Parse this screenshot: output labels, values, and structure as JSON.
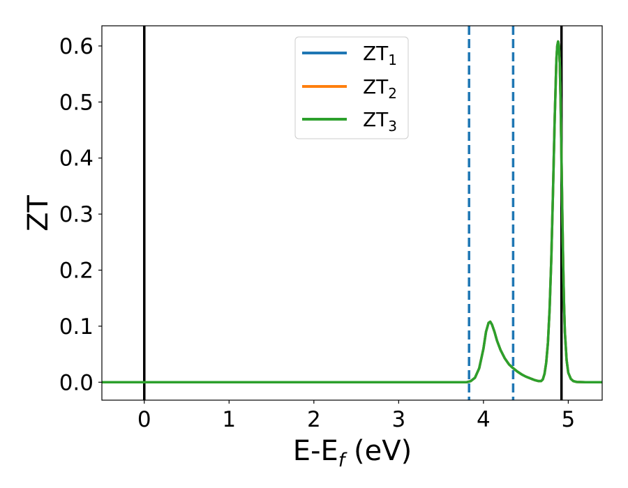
{
  "chart_data": {
    "type": "line",
    "xlabel_main": "E-E",
    "xlabel_sub": "f",
    "xlabel_unit": " (eV)",
    "ylabel": "ZT",
    "xlim": [
      -0.5,
      5.4
    ],
    "ylim": [
      -0.032,
      0.636
    ],
    "xticks": [
      0,
      1,
      2,
      3,
      4,
      5
    ],
    "xtick_labels": [
      "0",
      "1",
      "2",
      "3",
      "4",
      "5"
    ],
    "yticks": [
      0.0,
      0.1,
      0.2,
      0.3,
      0.4,
      0.5,
      0.6
    ],
    "ytick_labels": [
      "0.0",
      "0.1",
      "0.2",
      "0.3",
      "0.4",
      "0.5",
      "0.6"
    ],
    "grid": false,
    "legend_position": "top-center",
    "vlines": [
      {
        "x": 0.0,
        "style": "solid",
        "color": "#000000"
      },
      {
        "x": 4.92,
        "style": "solid",
        "color": "#000000"
      },
      {
        "x": 3.83,
        "style": "dashed",
        "color": "#1f77b4"
      },
      {
        "x": 4.35,
        "style": "dashed",
        "color": "#1f77b4"
      }
    ],
    "x": [
      -0.5,
      3.8,
      3.85,
      3.9,
      3.95,
      4.0,
      4.03,
      4.06,
      4.08,
      4.1,
      4.13,
      4.16,
      4.2,
      4.25,
      4.3,
      4.35,
      4.4,
      4.45,
      4.5,
      4.55,
      4.6,
      4.65,
      4.68,
      4.7,
      4.72,
      4.74,
      4.76,
      4.78,
      4.8,
      4.82,
      4.84,
      4.86,
      4.87,
      4.88,
      4.89,
      4.9,
      4.91,
      4.92,
      4.93,
      4.94,
      4.95,
      4.96,
      4.98,
      5.0,
      5.03,
      5.06,
      5.1,
      5.2,
      5.4
    ],
    "series": [
      {
        "name": "ZT",
        "sub": "1",
        "color": "#1f77b4",
        "values": [
          0,
          0,
          0.002,
          0.008,
          0.025,
          0.06,
          0.09,
          0.106,
          0.108,
          0.103,
          0.09,
          0.074,
          0.058,
          0.043,
          0.032,
          0.025,
          0.019,
          0.014,
          0.01,
          0.007,
          0.004,
          0.002,
          0.002,
          0.005,
          0.015,
          0.035,
          0.07,
          0.13,
          0.22,
          0.34,
          0.47,
          0.575,
          0.6,
          0.608,
          0.6,
          0.57,
          0.5,
          0.4,
          0.3,
          0.21,
          0.14,
          0.09,
          0.04,
          0.017,
          0.006,
          0.002,
          0.0005,
          0,
          0
        ]
      },
      {
        "name": "ZT",
        "sub": "2",
        "color": "#ff7f0e",
        "values": [
          0,
          0,
          0.002,
          0.008,
          0.025,
          0.06,
          0.09,
          0.106,
          0.108,
          0.103,
          0.09,
          0.074,
          0.058,
          0.043,
          0.032,
          0.025,
          0.019,
          0.014,
          0.01,
          0.007,
          0.004,
          0.002,
          0.002,
          0.005,
          0.015,
          0.035,
          0.07,
          0.13,
          0.22,
          0.34,
          0.47,
          0.575,
          0.6,
          0.608,
          0.6,
          0.57,
          0.5,
          0.4,
          0.3,
          0.21,
          0.14,
          0.09,
          0.04,
          0.017,
          0.006,
          0.002,
          0.0005,
          0,
          0
        ]
      },
      {
        "name": "ZT",
        "sub": "3",
        "color": "#2ca02c",
        "values": [
          0,
          0,
          0.002,
          0.008,
          0.025,
          0.06,
          0.09,
          0.106,
          0.108,
          0.103,
          0.09,
          0.074,
          0.058,
          0.043,
          0.032,
          0.025,
          0.019,
          0.014,
          0.01,
          0.007,
          0.004,
          0.002,
          0.002,
          0.005,
          0.015,
          0.035,
          0.07,
          0.13,
          0.22,
          0.34,
          0.47,
          0.575,
          0.6,
          0.608,
          0.6,
          0.57,
          0.5,
          0.4,
          0.3,
          0.21,
          0.14,
          0.09,
          0.04,
          0.017,
          0.006,
          0.002,
          0.0005,
          0,
          0
        ]
      }
    ]
  }
}
